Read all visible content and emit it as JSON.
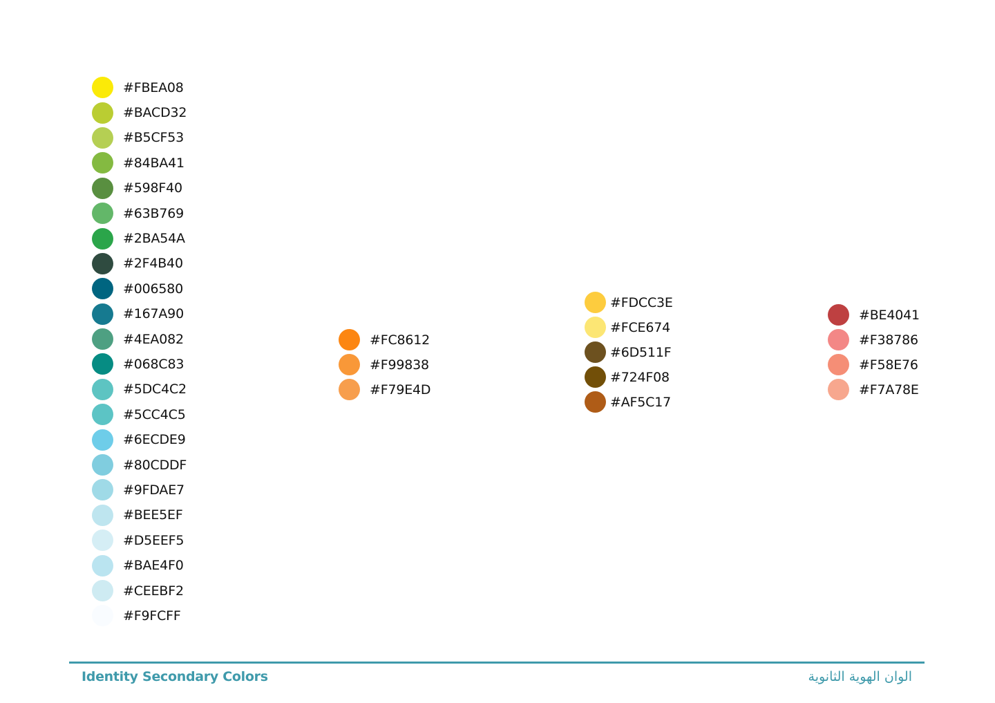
{
  "groups": [
    {
      "swatches": [
        {
          "hex": "#FBEA08",
          "color": "#FBEA08"
        },
        {
          "hex": "#BACD32",
          "color": "#BACD32"
        },
        {
          "hex": "#B5CF53",
          "color": "#B5CF53"
        },
        {
          "hex": "#84BA41",
          "color": "#84BA41"
        },
        {
          "hex": "#598F40",
          "color": "#598F40"
        },
        {
          "hex": "#63B769",
          "color": "#63B769"
        },
        {
          "hex": "#2BA54A",
          "color": "#2BA54A"
        },
        {
          "hex": "#2F4B40",
          "color": "#2F4B40"
        },
        {
          "hex": "#006580",
          "color": "#006580"
        },
        {
          "hex": "#167A90",
          "color": "#167A90"
        },
        {
          "hex": "#4EA082",
          "color": "#4EA082"
        },
        {
          "hex": "#068C83",
          "color": "#068C83"
        },
        {
          "hex": "#5DC4C2",
          "color": "#5DC4C2"
        },
        {
          "hex": "#5CC4C5",
          "color": "#5CC4C5"
        },
        {
          "hex": "#6ECDE9",
          "color": "#6ECDE9"
        },
        {
          "hex": "#80CDDF",
          "color": "#80CDDF"
        },
        {
          "hex": "#9FDAE7",
          "color": "#9FDAE7"
        },
        {
          "hex": "#BEE5EF",
          "color": "#BEE5EF"
        },
        {
          "hex": "#D5EEF5",
          "color": "#D5EEF5"
        },
        {
          "hex": "#BAE4F0",
          "color": "#BAE4F0"
        },
        {
          "hex": "#CEEBF2",
          "color": "#CEEBF2"
        },
        {
          "hex": "#F9FCFF",
          "color": "#F9FCFF"
        }
      ]
    },
    {
      "swatches": [
        {
          "hex": "#FC8612",
          "color": "#FC8612"
        },
        {
          "hex": "#F99838",
          "color": "#F99838"
        },
        {
          "hex": "#F79E4D",
          "color": "#F79E4D"
        }
      ]
    },
    {
      "swatches": [
        {
          "hex": "#FDCC3E",
          "color": "#FDCC3E"
        },
        {
          "hex": "#FCE674",
          "color": "#FCE674"
        },
        {
          "hex": "#6D511F",
          "color": "#6D511F"
        },
        {
          "hex": "#724F08",
          "color": "#724F08"
        },
        {
          "hex": "#AF5C17",
          "color": "#AF5C17"
        }
      ]
    },
    {
      "swatches": [
        {
          "hex": "#BE4041",
          "color": "#BE4041"
        },
        {
          "hex": "#F38786",
          "color": "#F38786"
        },
        {
          "hex": "#F58E76",
          "color": "#F58E76"
        },
        {
          "hex": "#F7A78E",
          "color": "#F7A78E"
        }
      ]
    }
  ],
  "footer": {
    "title_en": "Identity Secondary Colors",
    "title_ar": "الوان الهوية الثانوية",
    "accent_color": "#3F9AAB"
  }
}
